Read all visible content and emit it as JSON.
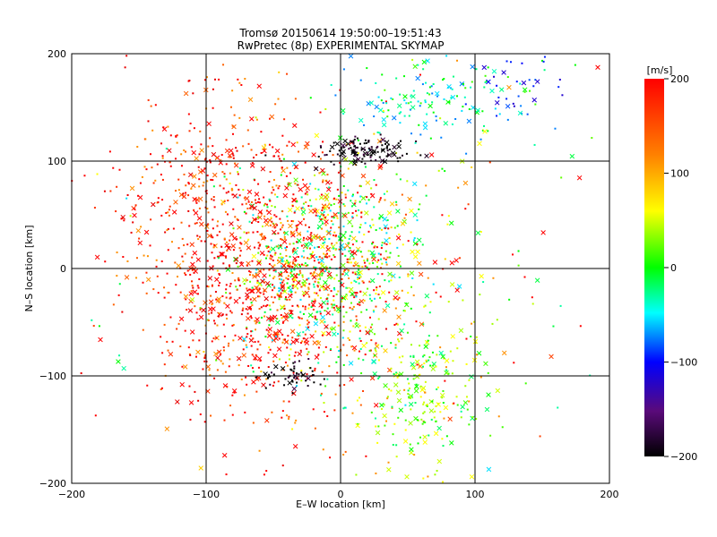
{
  "chart_data": {
    "type": "scatter",
    "title": "Tromsø 20150614 19:50:00–19:51:43",
    "subtitle": "RwPretec (8p) EXPERIMENTAL SKYMAP",
    "xlabel": "E–W location [km]",
    "ylabel": "N–S location [km]",
    "xlim": [
      -200,
      200
    ],
    "ylim": [
      -200,
      200
    ],
    "x_ticks": [
      -200,
      -100,
      0,
      100,
      200
    ],
    "y_ticks": [
      -200,
      -100,
      0,
      100,
      200
    ],
    "grid": true,
    "colorbar": {
      "label": "[m/s]",
      "range": [
        -200,
        200
      ],
      "ticks": [
        200,
        100,
        0,
        -100,
        -200
      ],
      "colors": [
        "#000000",
        "#5a0a7a",
        "#0000ff",
        "#00ffff",
        "#00ff00",
        "#ffff00",
        "#ff8000",
        "#ff0000"
      ]
    },
    "markers": [
      "dot",
      "x"
    ],
    "clusters": [
      {
        "cx": -10,
        "cy": 10,
        "sx": 35,
        "sy": 45,
        "n": 900,
        "vel": "mix-green-red"
      },
      {
        "cx": -90,
        "cy": 60,
        "sx": 45,
        "sy": 55,
        "n": 550,
        "vel": "red"
      },
      {
        "cx": -60,
        "cy": -50,
        "sx": 40,
        "sy": 50,
        "n": 450,
        "vel": "red"
      },
      {
        "cx": 60,
        "cy": -110,
        "sx": 25,
        "sy": 40,
        "n": 260,
        "vel": "green-yellow"
      },
      {
        "cx": 70,
        "cy": 160,
        "sx": 35,
        "sy": 25,
        "n": 160,
        "vel": "green-cyan"
      },
      {
        "cx": 20,
        "cy": 110,
        "sx": 18,
        "sy": 6,
        "n": 120,
        "vel": "black"
      },
      {
        "cx": -35,
        "cy": -100,
        "sx": 10,
        "sy": 6,
        "n": 50,
        "vel": "black"
      },
      {
        "cx": 130,
        "cy": 170,
        "sx": 15,
        "sy": 15,
        "n": 30,
        "vel": "blue"
      },
      {
        "cx": 0,
        "cy": 0,
        "sx": 110,
        "sy": 110,
        "n": 200,
        "vel": "mix-green-red"
      }
    ]
  }
}
